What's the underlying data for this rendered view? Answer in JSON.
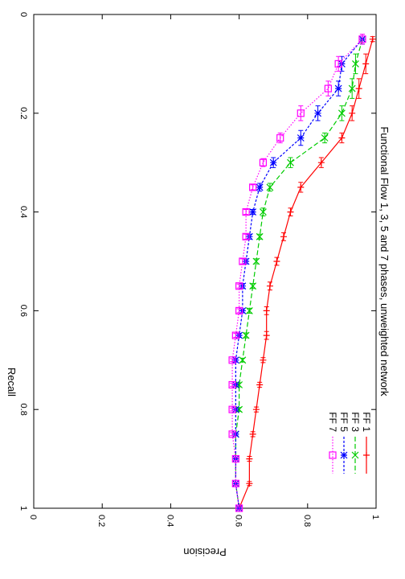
{
  "chart_data": {
    "type": "line",
    "orientation": "rotated-90-clockwise",
    "title": "Functional Flow 1, 3, 5 and 7 phases, unweighted network",
    "xlabel": "Recall",
    "ylabel": "Precision",
    "xlim": [
      0,
      1
    ],
    "ylim": [
      0,
      1
    ],
    "x_ticks": [
      "0",
      "0.2",
      "0.4",
      "0.6",
      "0.8",
      "1"
    ],
    "y_ticks": [
      "0",
      "0.2",
      "0.4",
      "0.6",
      "0.8",
      "1"
    ],
    "x_tick_values": [
      0,
      0.2,
      0.4,
      0.6,
      0.8,
      1
    ],
    "y_tick_values": [
      0,
      0.2,
      0.4,
      0.6,
      0.8,
      1
    ],
    "grid": false,
    "legend_position": "top-right",
    "series": [
      {
        "name": "FF 1",
        "color": "#ff0000",
        "marker": "plus",
        "dash": "solid",
        "x": [
          0.05,
          0.1,
          0.15,
          0.2,
          0.25,
          0.3,
          0.35,
          0.4,
          0.45,
          0.5,
          0.55,
          0.6,
          0.65,
          0.7,
          0.75,
          0.8,
          0.85,
          0.9,
          0.95,
          1.0
        ],
        "y": [
          0.99,
          0.97,
          0.95,
          0.93,
          0.9,
          0.84,
          0.78,
          0.75,
          0.73,
          0.71,
          0.69,
          0.68,
          0.68,
          0.67,
          0.66,
          0.65,
          0.64,
          0.63,
          0.63,
          0.6
        ],
        "err": [
          0.005,
          0.02,
          0.02,
          0.015,
          0.01,
          0.01,
          0.01,
          0.008,
          0.008,
          0.008,
          0.008,
          0.008,
          0.008,
          0.005,
          0.005,
          0.005,
          0.005,
          0.005,
          0.004,
          0.003
        ]
      },
      {
        "name": "FF 3",
        "color": "#00cc00",
        "marker": "cross",
        "dash": "dashed",
        "x": [
          0.05,
          0.1,
          0.15,
          0.2,
          0.25,
          0.3,
          0.35,
          0.4,
          0.45,
          0.5,
          0.55,
          0.6,
          0.65,
          0.7,
          0.75,
          0.8,
          0.85,
          0.9,
          0.95,
          1.0
        ],
        "y": [
          0.96,
          0.94,
          0.93,
          0.9,
          0.85,
          0.75,
          0.69,
          0.67,
          0.66,
          0.65,
          0.64,
          0.63,
          0.62,
          0.61,
          0.6,
          0.6,
          0.59,
          0.59,
          0.59,
          0.6
        ],
        "err": [
          0.01,
          0.02,
          0.02,
          0.015,
          0.01,
          0.01,
          0.008,
          0.008,
          0.005,
          0.005,
          0.005,
          0.005,
          0.005,
          0.004,
          0.004,
          0.004,
          0.003,
          0.003,
          0.003,
          0.003
        ]
      },
      {
        "name": "FF 5",
        "color": "#0000ff",
        "marker": "star",
        "dash": "dotted-dense",
        "x": [
          0.05,
          0.1,
          0.15,
          0.2,
          0.25,
          0.3,
          0.35,
          0.4,
          0.45,
          0.5,
          0.55,
          0.6,
          0.65,
          0.7,
          0.75,
          0.8,
          0.85,
          0.9,
          0.95,
          1.0
        ],
        "y": [
          0.96,
          0.9,
          0.89,
          0.83,
          0.78,
          0.7,
          0.66,
          0.64,
          0.63,
          0.62,
          0.61,
          0.61,
          0.6,
          0.59,
          0.59,
          0.59,
          0.59,
          0.59,
          0.59,
          0.6
        ],
        "err": [
          0.01,
          0.015,
          0.015,
          0.015,
          0.015,
          0.01,
          0.008,
          0.005,
          0.005,
          0.005,
          0.005,
          0.004,
          0.004,
          0.004,
          0.003,
          0.003,
          0.003,
          0.003,
          0.003,
          0.003
        ]
      },
      {
        "name": "FF 7",
        "color": "#ff00ff",
        "marker": "square",
        "dash": "dotted",
        "x": [
          0.05,
          0.1,
          0.15,
          0.2,
          0.25,
          0.3,
          0.35,
          0.4,
          0.45,
          0.5,
          0.55,
          0.6,
          0.65,
          0.7,
          0.75,
          0.8,
          0.85,
          0.9,
          0.95,
          1.0
        ],
        "y": [
          0.96,
          0.89,
          0.86,
          0.78,
          0.72,
          0.67,
          0.64,
          0.62,
          0.62,
          0.61,
          0.6,
          0.6,
          0.59,
          0.58,
          0.58,
          0.58,
          0.58,
          0.59,
          0.59,
          0.6
        ],
        "err": [
          0.01,
          0.015,
          0.015,
          0.015,
          0.01,
          0.008,
          0.005,
          0.005,
          0.005,
          0.005,
          0.004,
          0.004,
          0.004,
          0.003,
          0.003,
          0.003,
          0.003,
          0.003,
          0.003,
          0.003
        ]
      }
    ]
  }
}
